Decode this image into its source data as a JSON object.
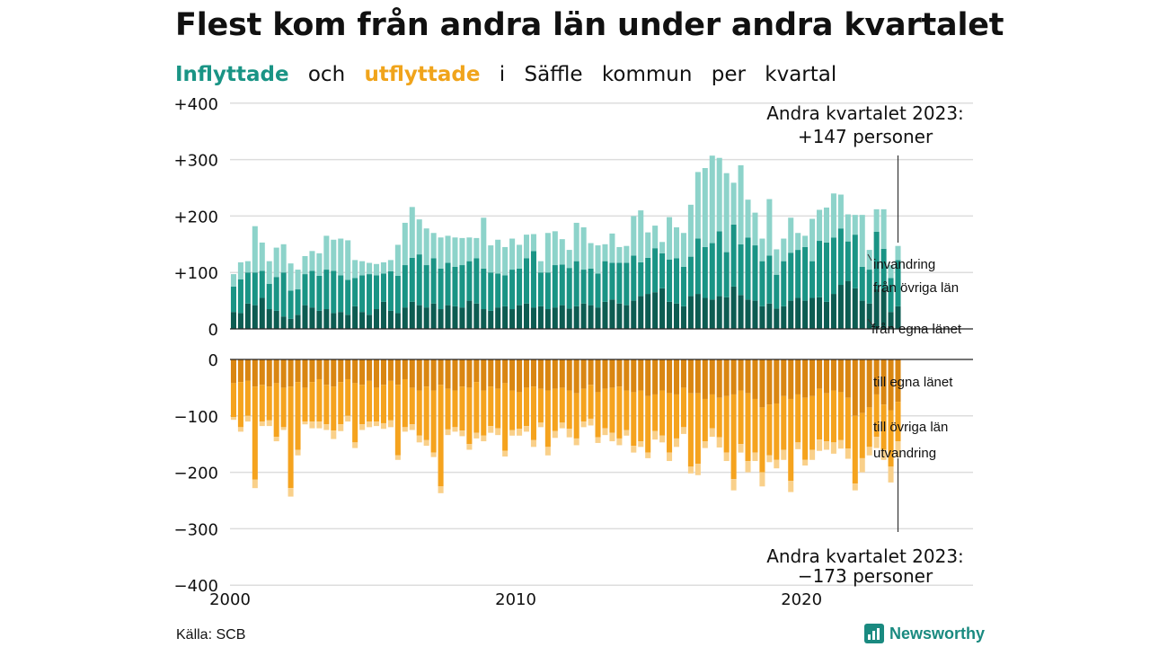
{
  "title": "Flest kom från andra län under andra kvartalet",
  "subtitle": {
    "inflyttade": "Inflyttade",
    "och": "och",
    "utflyttade": "utflyttade",
    "rest": [
      "i",
      "Säffle",
      "kommun",
      "per",
      "kvartal"
    ]
  },
  "source": "Källa: SCB",
  "brand": {
    "name": "Newsworthy",
    "icon": "newsworthy-bars-icon"
  },
  "colors": {
    "in_egna": "#0d5c52",
    "in_ovriga": "#1a9485",
    "in_invandring": "#8dd3ca",
    "out_egna": "#d98612",
    "out_ovriga": "#f5a31e",
    "out_utvandring": "#f9d08a",
    "grid": "#dddddd",
    "axis": "#222222"
  },
  "chart_data": {
    "type": "bar",
    "stacked": true,
    "grid": true,
    "x_ticks": [
      "2000",
      "2010",
      "2020"
    ],
    "xlim": [
      "2000 Q1",
      "2025 Q4"
    ],
    "top": {
      "y_ticks": [
        "+400",
        "+300",
        "+200",
        "+100",
        "0"
      ],
      "ylim": [
        0,
        400
      ],
      "annotation": [
        "Andra kvartalet 2023:",
        "+147 personer"
      ],
      "series_labels": [
        "invandring",
        "från övriga län",
        "från egna länet"
      ]
    },
    "bottom": {
      "y_ticks": [
        "0",
        "−100",
        "−200",
        "−300",
        "−400"
      ],
      "ylim": [
        -400,
        0
      ],
      "annotation": [
        "Andra kvartalet 2023:",
        "−173 personer"
      ],
      "series_labels": [
        "till egna länet",
        "till övriga län",
        "utvandring"
      ]
    },
    "quarters": [
      "2000 Q1",
      "2000 Q2",
      "2000 Q3",
      "2000 Q4",
      "2001 Q1",
      "2001 Q2",
      "2001 Q3",
      "2001 Q4",
      "2002 Q1",
      "2002 Q2",
      "2002 Q3",
      "2002 Q4",
      "2003 Q1",
      "2003 Q2",
      "2003 Q3",
      "2003 Q4",
      "2004 Q1",
      "2004 Q2",
      "2004 Q3",
      "2004 Q4",
      "2005 Q1",
      "2005 Q2",
      "2005 Q3",
      "2005 Q4",
      "2006 Q1",
      "2006 Q2",
      "2006 Q3",
      "2006 Q4",
      "2007 Q1",
      "2007 Q2",
      "2007 Q3",
      "2007 Q4",
      "2008 Q1",
      "2008 Q2",
      "2008 Q3",
      "2008 Q4",
      "2009 Q1",
      "2009 Q2",
      "2009 Q3",
      "2009 Q4",
      "2010 Q1",
      "2010 Q2",
      "2010 Q3",
      "2010 Q4",
      "2011 Q1",
      "2011 Q2",
      "2011 Q3",
      "2011 Q4",
      "2012 Q1",
      "2012 Q2",
      "2012 Q3",
      "2012 Q4",
      "2013 Q1",
      "2013 Q2",
      "2013 Q3",
      "2013 Q4",
      "2014 Q1",
      "2014 Q2",
      "2014 Q3",
      "2014 Q4",
      "2015 Q1",
      "2015 Q2",
      "2015 Q3",
      "2015 Q4",
      "2016 Q1",
      "2016 Q2",
      "2016 Q3",
      "2016 Q4",
      "2017 Q1",
      "2017 Q2",
      "2017 Q3",
      "2017 Q4",
      "2018 Q1",
      "2018 Q2",
      "2018 Q3",
      "2018 Q4",
      "2019 Q1",
      "2019 Q2",
      "2019 Q3",
      "2019 Q4",
      "2020 Q1",
      "2020 Q2",
      "2020 Q3",
      "2020 Q4",
      "2021 Q1",
      "2021 Q2",
      "2021 Q3",
      "2021 Q4",
      "2022 Q1",
      "2022 Q2",
      "2022 Q3",
      "2022 Q4",
      "2023 Q1",
      "2023 Q2"
    ],
    "series": [
      {
        "name": "från egna länet",
        "values": [
          30,
          28,
          45,
          42,
          55,
          35,
          32,
          22,
          18,
          25,
          42,
          38,
          32,
          35,
          28,
          30,
          25,
          40,
          30,
          25,
          35,
          48,
          32,
          28,
          38,
          48,
          42,
          38,
          45,
          35,
          42,
          40,
          38,
          50,
          45,
          35,
          32,
          38,
          40,
          35,
          42,
          45,
          38,
          40,
          35,
          38,
          42,
          36,
          40,
          45,
          42,
          38,
          48,
          52,
          45,
          42,
          50,
          58,
          62,
          65,
          72,
          48,
          45,
          40,
          58,
          62,
          55,
          52,
          58,
          56,
          75,
          60,
          52,
          50,
          40,
          45,
          36,
          40,
          50,
          55,
          50,
          55,
          56,
          48,
          62,
          78,
          85,
          72,
          50,
          45,
          70,
          70,
          30,
          40
        ]
      },
      {
        "name": "från övriga län",
        "values": [
          45,
          60,
          55,
          58,
          48,
          45,
          60,
          78,
          50,
          45,
          55,
          65,
          62,
          70,
          75,
          65,
          62,
          50,
          65,
          72,
          60,
          50,
          70,
          66,
          75,
          78,
          90,
          75,
          80,
          72,
          75,
          70,
          75,
          70,
          80,
          72,
          68,
          60,
          55,
          70,
          65,
          80,
          100,
          60,
          65,
          75,
          72,
          72,
          80,
          60,
          65,
          60,
          72,
          65,
          72,
          75,
          80,
          60,
          64,
          78,
          62,
          75,
          80,
          70,
          70,
          98,
          90,
          100,
          115,
          80,
          110,
          90,
          110,
          98,
          80,
          85,
          60,
          80,
          85,
          85,
          95,
          65,
          100,
          105,
          100,
          100,
          70,
          95,
          60,
          60,
          102,
          72,
          60,
          82
        ]
      },
      {
        "name": "invandring",
        "values": [
          22,
          30,
          20,
          82,
          50,
          40,
          52,
          50,
          48,
          35,
          32,
          35,
          40,
          60,
          55,
          65,
          70,
          32,
          25,
          20,
          20,
          20,
          20,
          55,
          75,
          90,
          62,
          65,
          45,
          55,
          48,
          52,
          48,
          42,
          36,
          90,
          48,
          60,
          50,
          55,
          42,
          42,
          30,
          20,
          70,
          60,
          45,
          32,
          68,
          75,
          45,
          50,
          30,
          52,
          28,
          30,
          70,
          92,
          45,
          40,
          20,
          75,
          55,
          60,
          92,
          118,
          140,
          155,
          130,
          140,
          74,
          140,
          67,
          58,
          40,
          100,
          45,
          40,
          62,
          30,
          20,
          75,
          55,
          62,
          78,
          60,
          48,
          35,
          92,
          35,
          40,
          70,
          23,
          25
        ]
      },
      {
        "name": "till egna länet",
        "values": [
          42,
          40,
          38,
          48,
          45,
          48,
          42,
          50,
          48,
          40,
          50,
          40,
          35,
          45,
          48,
          40,
          35,
          42,
          45,
          38,
          50,
          45,
          38,
          45,
          35,
          50,
          55,
          48,
          55,
          45,
          52,
          55,
          48,
          50,
          40,
          55,
          48,
          52,
          42,
          55,
          58,
          50,
          48,
          52,
          55,
          52,
          50,
          55,
          60,
          52,
          45,
          58,
          52,
          50,
          48,
          55,
          58,
          55,
          65,
          62,
          55,
          60,
          62,
          50,
          60,
          60,
          70,
          62,
          68,
          65,
          62,
          55,
          60,
          70,
          85,
          80,
          78,
          65,
          70,
          62,
          68,
          65,
          52,
          60,
          55,
          58,
          68,
          100,
          95,
          85,
          62,
          80,
          90,
          75
        ]
      },
      {
        "name": "till övriga län",
        "values": [
          60,
          80,
          62,
          165,
          65,
          60,
          95,
          70,
          180,
          120,
          60,
          70,
          75,
          70,
          78,
          75,
          65,
          105,
          70,
          72,
          60,
          68,
          70,
          125,
          85,
          65,
          80,
          95,
          110,
          180,
          72,
          65,
          78,
          100,
          90,
          80,
          70,
          70,
          120,
          70,
          65,
          68,
          95,
          60,
          100,
          75,
          62,
          68,
          80,
          58,
          60,
          80,
          70,
          80,
          92,
          70,
          95,
          90,
          100,
          65,
          80,
          105,
          78,
          70,
          130,
          125,
          75,
          60,
          70,
          100,
          150,
          95,
          120,
          95,
          115,
          90,
          100,
          95,
          145,
          85,
          110,
          95,
          90,
          85,
          92,
          85,
          90,
          120,
          80,
          70,
          75,
          80,
          100,
          70
        ]
      },
      {
        "name": "utvandring",
        "values": [
          5,
          8,
          10,
          15,
          8,
          10,
          8,
          5,
          15,
          10,
          5,
          12,
          12,
          10,
          15,
          12,
          10,
          10,
          10,
          10,
          8,
          10,
          12,
          8,
          8,
          10,
          12,
          10,
          8,
          12,
          10,
          8,
          10,
          10,
          10,
          10,
          12,
          12,
          10,
          10,
          12,
          10,
          12,
          8,
          15,
          12,
          10,
          15,
          12,
          10,
          12,
          10,
          12,
          15,
          12,
          10,
          12,
          10,
          10,
          15,
          12,
          15,
          15,
          12,
          12,
          20,
          12,
          15,
          18,
          15,
          20,
          15,
          20,
          15,
          25,
          12,
          15,
          18,
          20,
          12,
          10,
          18,
          20,
          15,
          20,
          15,
          18,
          12,
          25,
          15,
          20,
          18,
          28,
          28
        ]
      }
    ]
  }
}
